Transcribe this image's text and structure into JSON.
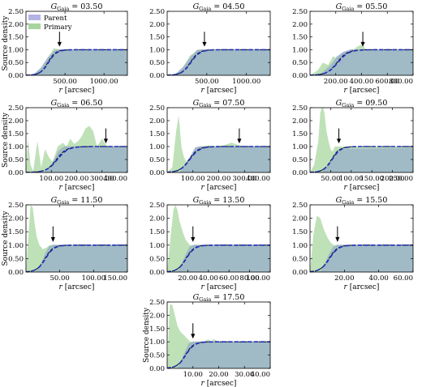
{
  "figure": {
    "legend": [
      {
        "label": "Parent",
        "color": "#b3b3e6"
      },
      {
        "label": "Primary",
        "color": "#a8d4a0"
      }
    ],
    "colors": {
      "parent_fill": "#9fb7c9",
      "parent_edge": "#b0b0e8",
      "primary_fill": "#b4dcab",
      "model_line": "#000000",
      "fit_line": "#1f2fbf",
      "arrow": "#000000"
    }
  },
  "chart_data": [
    {
      "type": "area",
      "title": "G_Gaia = 03.50",
      "title_sub": "Gaia",
      "title_value": "03.50",
      "xlabel": "",
      "ylabel": "Source density",
      "xlim": [
        0,
        1300
      ],
      "ylim": [
        0,
        2.5
      ],
      "xticks": [
        {
          "v": 500,
          "t": "500.00"
        },
        {
          "v": 1000,
          "t": "1000.00"
        }
      ],
      "yticks": [
        0,
        0.5,
        1.0,
        1.5,
        2.0,
        2.5
      ],
      "arrow_x": 430,
      "r_half": 280,
      "r_width": 50,
      "series": [
        {
          "name": "Parent",
          "x": [
            0,
            100,
            200,
            280,
            360,
            400,
            440,
            1300
          ],
          "y": [
            0,
            0.02,
            0.3,
            0.68,
            0.95,
            1.0,
            1.0,
            1.0
          ]
        },
        {
          "name": "Primary",
          "x": [
            0,
            100,
            200,
            280,
            360,
            400,
            440,
            500,
            1300
          ],
          "y": [
            0,
            0.02,
            0.3,
            0.7,
            1.06,
            1.02,
            1.0,
            1.0,
            1.0
          ]
        }
      ],
      "legend_shown": true
    },
    {
      "type": "area",
      "title": "G_Gaia = 04.50",
      "title_sub": "Gaia",
      "title_value": "04.50",
      "xlabel": "",
      "ylabel": "",
      "xlim": [
        0,
        1300
      ],
      "ylim": [
        0,
        2.5
      ],
      "xticks": [
        {
          "v": 500,
          "t": "500.00"
        },
        {
          "v": 1000,
          "t": "1000.00"
        }
      ],
      "yticks": [
        0,
        0.5,
        1.0,
        1.5,
        2.0,
        2.5
      ],
      "arrow_x": 470,
      "r_half": 290,
      "r_width": 55,
      "series": [
        {
          "name": "Parent",
          "x": [
            0,
            100,
            200,
            290,
            380,
            440,
            1300
          ],
          "y": [
            0,
            0.02,
            0.3,
            0.7,
            0.98,
            1.0,
            1.0
          ]
        },
        {
          "name": "Primary",
          "x": [
            0,
            100,
            200,
            290,
            330,
            380,
            440,
            1300
          ],
          "y": [
            0,
            0.02,
            0.3,
            0.78,
            0.85,
            1.0,
            1.0,
            1.0
          ]
        }
      ],
      "legend_shown": false
    },
    {
      "type": "area",
      "title": "G_Gaia = 05.50",
      "title_sub": "Gaia",
      "title_value": "05.50",
      "xlabel": "",
      "ylabel": "",
      "xlim": [
        0,
        800
      ],
      "ylim": [
        0,
        2.5
      ],
      "xticks": [
        {
          "v": 200,
          "t": "200.00"
        },
        {
          "v": 400,
          "t": "400.00"
        },
        {
          "v": 600,
          "t": "600.00"
        },
        {
          "v": 800,
          "t": "800.00"
        }
      ],
      "yticks": [
        0,
        0.5,
        1.0,
        1.5,
        2.0,
        2.5
      ],
      "arrow_x": 410,
      "r_half": 210,
      "r_width": 40,
      "series": [
        {
          "name": "Parent",
          "x": [
            0,
            80,
            160,
            210,
            260,
            320,
            800
          ],
          "y": [
            0,
            0.05,
            0.4,
            0.72,
            0.9,
            1.0,
            1.0
          ]
        },
        {
          "name": "Primary",
          "x": [
            0,
            60,
            100,
            140,
            180,
            220,
            250,
            280,
            320,
            360,
            400,
            440,
            480,
            800
          ],
          "y": [
            0,
            0.2,
            0.5,
            0.4,
            0.75,
            0.6,
            0.3,
            0.65,
            0.9,
            1.1,
            1.2,
            1.0,
            1.0,
            1.0
          ]
        }
      ],
      "legend_shown": false
    },
    {
      "type": "area",
      "title": "G_Gaia = 06.50",
      "title_sub": "Gaia",
      "title_value": "06.50",
      "xlabel": "",
      "ylabel": "Source density",
      "xlim": [
        0,
        400
      ],
      "ylim": [
        0,
        2.5
      ],
      "xticks": [
        {
          "v": 100,
          "t": "100.00"
        },
        {
          "v": 200,
          "t": "200.00"
        },
        {
          "v": 300,
          "t": "300.00"
        },
        {
          "v": 400,
          "t": "400.00"
        }
      ],
      "yticks": [
        0,
        0.5,
        1.0,
        1.5,
        2.0,
        2.5
      ],
      "arrow_x": 315,
      "r_half": 120,
      "r_width": 20,
      "series": [
        {
          "name": "Parent",
          "x": [
            0,
            70,
            100,
            130,
            150,
            400
          ],
          "y": [
            0,
            0.02,
            0.3,
            0.85,
            1.0,
            1.0
          ]
        },
        {
          "name": "Primary",
          "x": [
            0,
            8,
            18,
            28,
            45,
            60,
            75,
            90,
            105,
            125,
            145,
            160,
            175,
            190,
            205,
            220,
            235,
            250,
            265,
            280,
            300,
            320,
            340,
            400
          ],
          "y": [
            0,
            1.3,
            0.3,
            0.05,
            1.2,
            0.2,
            0.9,
            0.6,
            0.4,
            1.0,
            1.15,
            1.0,
            1.3,
            1.1,
            1.2,
            1.4,
            1.7,
            1.8,
            1.6,
            1.0,
            1.3,
            1.0,
            1.0,
            1.0
          ]
        }
      ],
      "legend_shown": false
    },
    {
      "type": "area",
      "title": "G_Gaia = 07.50",
      "title_sub": "Gaia",
      "title_value": "07.50",
      "xlabel": "",
      "ylabel": "",
      "xlim": [
        0,
        400
      ],
      "ylim": [
        0,
        2.5
      ],
      "xticks": [
        {
          "v": 100,
          "t": "100.00"
        },
        {
          "v": 200,
          "t": "200.00"
        },
        {
          "v": 300,
          "t": "300.00"
        },
        {
          "v": 400,
          "t": "400.00"
        }
      ],
      "yticks": [
        0,
        0.5,
        1.0,
        1.5,
        2.0,
        2.5
      ],
      "arrow_x": 280,
      "r_half": 85,
      "r_width": 18,
      "series": [
        {
          "name": "Parent",
          "x": [
            0,
            50,
            70,
            90,
            110,
            130,
            400
          ],
          "y": [
            0,
            0.02,
            0.3,
            0.6,
            0.95,
            1.0,
            1.0
          ]
        },
        {
          "name": "Primary",
          "x": [
            0,
            20,
            35,
            45,
            55,
            65,
            80,
            95,
            110,
            130,
            160,
            190,
            220,
            250,
            280,
            300,
            400
          ],
          "y": [
            0,
            0.2,
            1.6,
            2.2,
            1.0,
            0.6,
            0.3,
            0.7,
            0.9,
            1.0,
            1.05,
            1.0,
            1.05,
            1.15,
            1.05,
            1.0,
            1.0
          ]
        }
      ],
      "legend_shown": false
    },
    {
      "type": "area",
      "title": "G_Gaia = 09.50",
      "title_sub": "Gaia",
      "title_value": "09.50",
      "xlabel": "",
      "ylabel": "",
      "xlim": [
        0,
        250
      ],
      "ylim": [
        0,
        2.5
      ],
      "xticks": [
        {
          "v": 50,
          "t": "50.00"
        },
        {
          "v": 100,
          "t": "100.00"
        },
        {
          "v": 150,
          "t": "150.00"
        },
        {
          "v": 200,
          "t": "200.00"
        },
        {
          "v": 250,
          "t": "250.00"
        }
      ],
      "yticks": [
        0,
        0.5,
        1.0,
        1.5,
        2.0,
        2.5
      ],
      "arrow_x": 70,
      "r_half": 52,
      "r_width": 10,
      "series": [
        {
          "name": "Parent",
          "x": [
            0,
            30,
            45,
            55,
            65,
            75,
            100,
            250
          ],
          "y": [
            0,
            0.02,
            0.3,
            0.6,
            0.85,
            0.9,
            0.92,
            0.95
          ]
        },
        {
          "name": "Primary",
          "x": [
            0,
            10,
            20,
            25,
            30,
            35,
            40,
            45,
            50,
            55,
            60,
            70,
            80,
            100,
            250
          ],
          "y": [
            0,
            0.3,
            1.2,
            2.3,
            2.6,
            2.3,
            1.6,
            1.2,
            0.9,
            0.8,
            1.0,
            1.0,
            1.0,
            1.0,
            1.0
          ]
        }
      ],
      "legend_shown": false
    },
    {
      "type": "area",
      "title": "G_Gaia = 11.50",
      "title_sub": "Gaia",
      "title_value": "11.50",
      "xlabel": "",
      "ylabel": "Source density",
      "xlim": [
        0,
        150
      ],
      "ylim": [
        0,
        2.5
      ],
      "xticks": [
        {
          "v": 50,
          "t": "50.00"
        },
        {
          "v": 100,
          "t": "100.00"
        },
        {
          "v": 150,
          "t": "150.00"
        }
      ],
      "yticks": [
        0,
        0.5,
        1.0,
        1.5,
        2.0,
        2.5
      ],
      "arrow_x": 40,
      "r_half": 28,
      "r_width": 6,
      "series": [
        {
          "name": "Parent",
          "x": [
            0,
            15,
            22,
            28,
            34,
            40,
            150
          ],
          "y": [
            0,
            0.02,
            0.3,
            0.65,
            0.95,
            1.0,
            1.0
          ]
        },
        {
          "name": "Primary",
          "x": [
            0,
            4,
            7,
            10,
            13,
            16,
            20,
            25,
            30,
            35,
            40,
            150
          ],
          "y": [
            0,
            1.5,
            2.5,
            2.4,
            1.8,
            1.3,
            1.0,
            0.85,
            0.9,
            1.0,
            1.0,
            1.0
          ]
        }
      ],
      "legend_shown": false
    },
    {
      "type": "area",
      "title": "G_Gaia = 13.50",
      "title_sub": "Gaia",
      "title_value": "13.50",
      "xlabel": "",
      "ylabel": "",
      "xlim": [
        0,
        100
      ],
      "ylim": [
        0,
        2.5
      ],
      "xticks": [
        {
          "v": 20,
          "t": "20.00"
        },
        {
          "v": 40,
          "t": "40.00"
        },
        {
          "v": 60,
          "t": "60.00"
        },
        {
          "v": 80,
          "t": "80.00"
        },
        {
          "v": 100,
          "t": "100.00"
        }
      ],
      "yticks": [
        0,
        0.5,
        1.0,
        1.5,
        2.0,
        2.5
      ],
      "arrow_x": 25,
      "r_half": 18,
      "r_width": 4,
      "series": [
        {
          "name": "Parent",
          "x": [
            0,
            10,
            14,
            18,
            22,
            26,
            100
          ],
          "y": [
            0,
            0.02,
            0.3,
            0.65,
            0.95,
            1.0,
            1.0
          ]
        },
        {
          "name": "Primary",
          "x": [
            0,
            3,
            6,
            8,
            10,
            12,
            15,
            18,
            22,
            26,
            100
          ],
          "y": [
            0,
            1.2,
            2.3,
            2.5,
            2.3,
            1.9,
            1.5,
            1.2,
            1.0,
            1.0,
            1.0
          ]
        }
      ],
      "legend_shown": false
    },
    {
      "type": "area",
      "title": "G_Gaia = 15.50",
      "title_sub": "Gaia",
      "title_value": "15.50",
      "xlabel": "",
      "ylabel": "",
      "xlim": [
        0,
        60
      ],
      "ylim": [
        0,
        2.5
      ],
      "xticks": [
        {
          "v": 20,
          "t": "20.00"
        },
        {
          "v": 40,
          "t": "40.00"
        },
        {
          "v": 60,
          "t": "60.00"
        }
      ],
      "yticks": [
        0,
        0.5,
        1.0,
        1.5,
        2.0,
        2.5
      ],
      "arrow_x": 16,
      "r_half": 11,
      "r_width": 2.5,
      "series": [
        {
          "name": "Parent",
          "x": [
            0,
            6,
            8.5,
            11,
            13.5,
            16,
            60
          ],
          "y": [
            0,
            0.02,
            0.3,
            0.65,
            0.95,
            1.0,
            1.0
          ]
        },
        {
          "name": "Primary",
          "x": [
            0,
            2,
            4,
            6,
            8,
            10,
            12,
            14,
            16,
            60
          ],
          "y": [
            0,
            1.4,
            2.1,
            2.0,
            1.6,
            1.3,
            1.1,
            1.0,
            1.0,
            1.0
          ]
        }
      ],
      "legend_shown": false
    },
    {
      "type": "area",
      "title": "G_Gaia = 17.50",
      "title_sub": "Gaia",
      "title_value": "17.50",
      "xlabel": "",
      "ylabel": "Source density",
      "xlim": [
        0,
        40
      ],
      "ylim": [
        0,
        2.5
      ],
      "xticks": [
        {
          "v": 10,
          "t": "10.00"
        },
        {
          "v": 20,
          "t": "20.00"
        },
        {
          "v": 30,
          "t": "30.00"
        },
        {
          "v": 40,
          "t": "40.00"
        }
      ],
      "yticks": [
        0,
        0.5,
        1.0,
        1.5,
        2.0,
        2.5
      ],
      "arrow_x": 10,
      "r_half": 7,
      "r_width": 1.6,
      "series": [
        {
          "name": "Parent",
          "x": [
            0,
            4,
            5.5,
            7,
            8.5,
            10,
            40
          ],
          "y": [
            0,
            0.02,
            0.3,
            0.65,
            0.95,
            1.0,
            1.0
          ]
        },
        {
          "name": "Primary",
          "x": [
            0,
            1,
            2,
            3,
            4,
            5,
            6,
            7,
            8,
            9,
            10,
            14,
            16,
            17,
            18,
            20,
            40
          ],
          "y": [
            0,
            2.4,
            2.4,
            2.0,
            1.6,
            1.4,
            1.3,
            1.2,
            1.1,
            1.0,
            1.0,
            1.0,
            1.1,
            1.0,
            1.1,
            1.0,
            1.0
          ]
        }
      ],
      "legend_shown": false
    }
  ]
}
